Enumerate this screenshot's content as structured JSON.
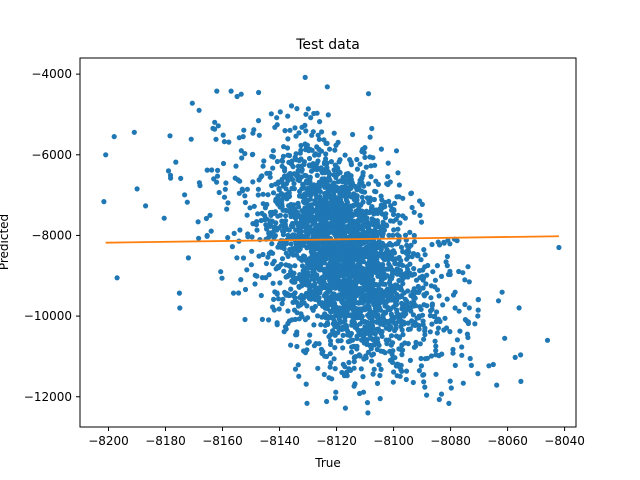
{
  "chart_data": {
    "type": "scatter",
    "title": "Test data",
    "xlabel": "True",
    "ylabel": "Predicted",
    "xlim": [
      -8210,
      -8036
    ],
    "ylim": [
      -12750,
      -3600
    ],
    "x_ticks": [
      -8200,
      -8180,
      -8160,
      -8140,
      -8120,
      -8100,
      -8080,
      -8060,
      -8040
    ],
    "y_ticks": [
      -12000,
      -10000,
      -8000,
      -6000,
      -4000
    ],
    "grid": false,
    "colors": {
      "points": "#1f77b4",
      "fit_line": "#ff7f0e"
    },
    "fit_line": {
      "x": [
        -8201,
        -8042
      ],
      "y": [
        -8180,
        -8020
      ]
    },
    "points_summary": {
      "count": 3000,
      "center": {
        "x": -8118,
        "y": -8500
      },
      "spread": {
        "x": 12,
        "y": 1300
      },
      "correlation": -0.35
    },
    "notable_points": [
      {
        "x": -8131,
        "y": -4080
      },
      {
        "x": -8162,
        "y": -4420
      },
      {
        "x": -8157,
        "y": -4420
      },
      {
        "x": -8141,
        "y": -5080
      },
      {
        "x": -8198,
        "y": -5550
      },
      {
        "x": -8042,
        "y": -8300
      },
      {
        "x": -8046,
        "y": -10600
      },
      {
        "x": -8061,
        "y": -10550
      },
      {
        "x": -8065,
        "y": -11200
      },
      {
        "x": -8075,
        "y": -9100
      },
      {
        "x": -8109,
        "y": -12400
      },
      {
        "x": -8201,
        "y": -6000
      },
      {
        "x": -8197,
        "y": -9050
      },
      {
        "x": -8175,
        "y": -9800
      }
    ]
  }
}
